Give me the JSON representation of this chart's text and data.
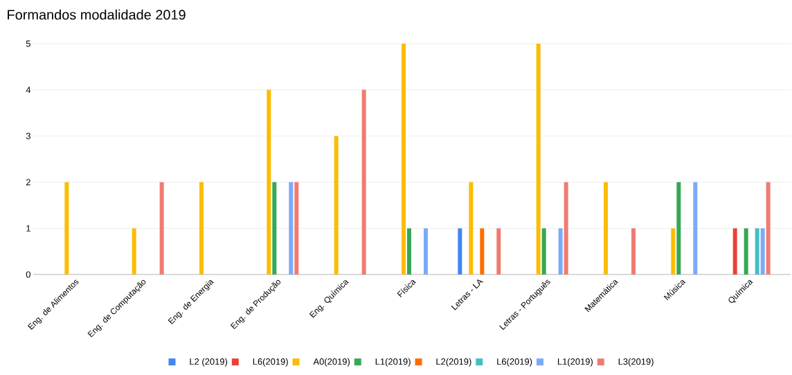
{
  "chart_data": {
    "type": "bar",
    "title": "Formandos modalidade 2019",
    "categories": [
      "Eng. de Alimentos",
      "Eng. de Computação",
      "Eng. de Energia",
      "Eng. de Produção",
      "Eng. Química",
      "Física",
      "Letras - LA",
      "Letras - Português",
      "Matemática",
      "Música",
      "Química"
    ],
    "series": [
      {
        "name": "L2 (2019)",
        "color": "#4285f4",
        "values": [
          null,
          null,
          null,
          null,
          null,
          null,
          1,
          null,
          null,
          null,
          null
        ]
      },
      {
        "name": "L6(2019)",
        "color": "#ea4335",
        "values": [
          null,
          null,
          null,
          null,
          null,
          null,
          null,
          null,
          null,
          null,
          1
        ]
      },
      {
        "name": "A0(2019)",
        "color": "#fbbc04",
        "values": [
          2,
          1,
          2,
          4,
          3,
          5,
          2,
          5,
          2,
          1,
          null
        ]
      },
      {
        "name": "L1(2019)",
        "color": "#34a853",
        "values": [
          null,
          null,
          null,
          2,
          null,
          1,
          null,
          1,
          null,
          2,
          1
        ]
      },
      {
        "name": "L2(2019)",
        "color": "#ff6d01",
        "values": [
          null,
          null,
          null,
          null,
          null,
          null,
          1,
          null,
          null,
          null,
          null
        ]
      },
      {
        "name": "L6(2019)",
        "color": "#46bdc6",
        "values": [
          null,
          null,
          null,
          null,
          null,
          null,
          null,
          null,
          null,
          null,
          1
        ]
      },
      {
        "name": "L1(2019)",
        "color": "#7baaf7",
        "values": [
          null,
          null,
          null,
          2,
          null,
          1,
          null,
          1,
          null,
          2,
          1
        ]
      },
      {
        "name": "L3(2019)",
        "color": "#f07b72",
        "values": [
          null,
          2,
          null,
          2,
          4,
          null,
          1,
          2,
          1,
          null,
          2
        ]
      }
    ],
    "ylim": [
      0,
      5
    ],
    "yticks": [
      0,
      1,
      2,
      3,
      4,
      5
    ],
    "grid": "y",
    "legend": "bottom"
  }
}
